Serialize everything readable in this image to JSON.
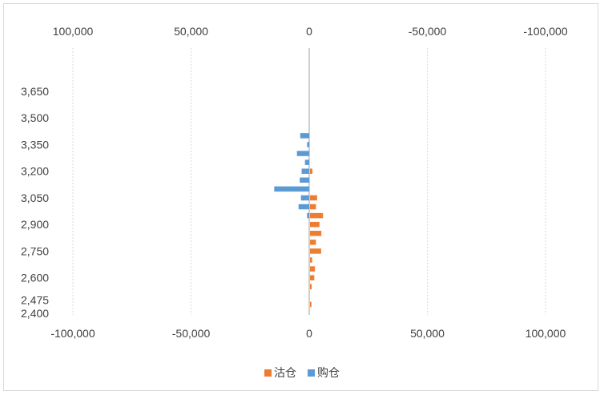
{
  "chart_data": {
    "type": "bar",
    "orientation": "horizontal",
    "top_axis": {
      "reversed": true,
      "range": [
        -100000,
        100000
      ],
      "ticks": [
        {
          "value": 100000,
          "label": "100,000",
          "color": "#404040"
        },
        {
          "value": 50000,
          "label": "50,000",
          "color": "#404040"
        },
        {
          "value": 0,
          "label": "0",
          "color": "#404040"
        },
        {
          "value": -50000,
          "label": "-50,000",
          "color": "#ff0000"
        },
        {
          "value": -100000,
          "label": "-100,000",
          "color": "#ff0000"
        }
      ]
    },
    "bottom_axis": {
      "range": [
        -100000,
        100000
      ],
      "ticks": [
        {
          "value": -100000,
          "label": "-100,000",
          "color": "#ff0000"
        },
        {
          "value": -50000,
          "label": "-50,000",
          "color": "#ff0000"
        },
        {
          "value": 0,
          "label": "0",
          "color": "#404040"
        },
        {
          "value": 50000,
          "label": "50,000",
          "color": "#404040"
        },
        {
          "value": 100000,
          "label": "100,000",
          "color": "#404040"
        }
      ]
    },
    "y_axis": {
      "range": [
        2400,
        3650
      ],
      "ticks": [
        {
          "value": 2400,
          "label": "2,400"
        },
        {
          "value": 2475,
          "label": "2,475"
        },
        {
          "value": 2600,
          "label": "2,600"
        },
        {
          "value": 2750,
          "label": "2,750"
        },
        {
          "value": 2900,
          "label": "2,900"
        },
        {
          "value": 3050,
          "label": "3,050"
        },
        {
          "value": 3200,
          "label": "3,200"
        },
        {
          "value": 3350,
          "label": "3,350"
        },
        {
          "value": 3500,
          "label": "3,500"
        },
        {
          "value": 3650,
          "label": "3,650"
        }
      ]
    },
    "grid": "vertical dotted",
    "legend_position": "bottom",
    "series": [
      {
        "name": "沽仓",
        "color": "#ed7d31",
        "points": [
          {
            "y": 3200,
            "x": 1000
          },
          {
            "y": 3050,
            "x": 3000
          },
          {
            "y": 3000,
            "x": 2500
          },
          {
            "y": 2950,
            "x": 5500
          },
          {
            "y": 2900,
            "x": 4000
          },
          {
            "y": 2850,
            "x": 4800
          },
          {
            "y": 2800,
            "x": 2500
          },
          {
            "y": 2750,
            "x": 4700
          },
          {
            "y": 2700,
            "x": 900
          },
          {
            "y": 2650,
            "x": 2100
          },
          {
            "y": 2600,
            "x": 1800
          },
          {
            "y": 2550,
            "x": 700
          },
          {
            "y": 2450,
            "x": 600
          }
        ]
      },
      {
        "name": "购仓",
        "color": "#5b9bd5",
        "points": [
          {
            "y": 3400,
            "x": 3800
          },
          {
            "y": 3350,
            "x": 900
          },
          {
            "y": 3300,
            "x": 5200
          },
          {
            "y": 3250,
            "x": 1800
          },
          {
            "y": 3200,
            "x": 3200
          },
          {
            "y": 3150,
            "x": 4000
          },
          {
            "y": 3100,
            "x": 14800
          },
          {
            "y": 3050,
            "x": 3500
          },
          {
            "y": 3000,
            "x": 4500
          },
          {
            "y": 2950,
            "x": 900
          }
        ]
      }
    ]
  }
}
